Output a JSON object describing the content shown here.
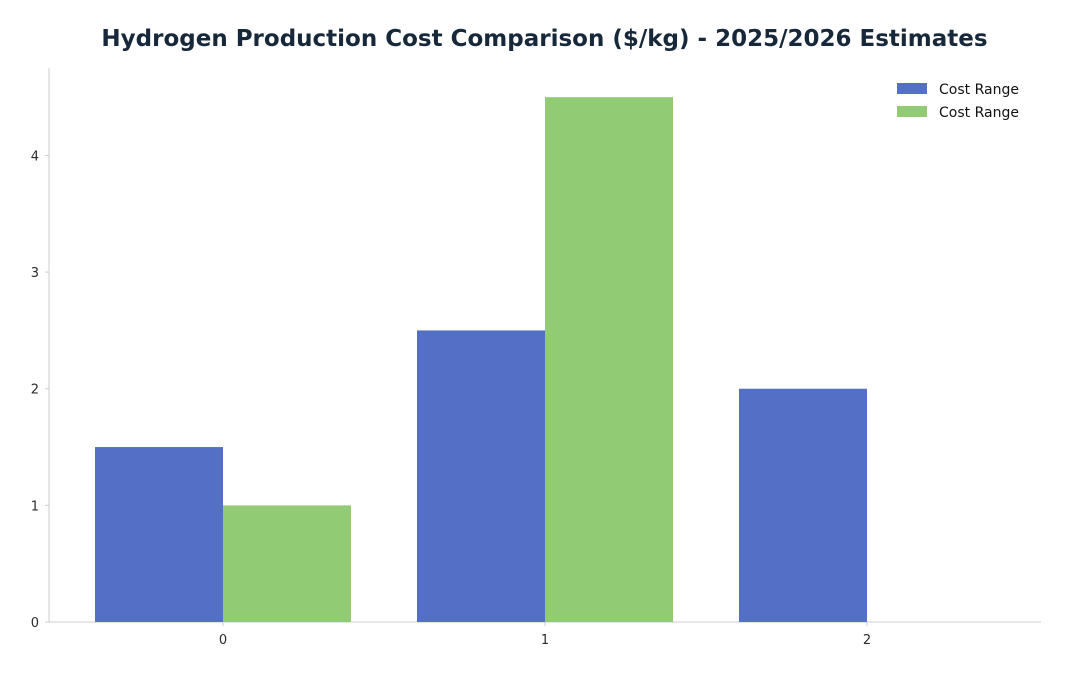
{
  "title": "Hydrogen Production Cost Comparison ($/kg) - 2025/2026 Estimates",
  "colors": {
    "series_0": "#5470c6",
    "series_1": "#91cc75",
    "axis": "#cccccc",
    "text": "#17283a"
  },
  "chart_data": {
    "type": "bar",
    "title": "Hydrogen Production Cost Comparison ($/kg) - 2025/2026 Estimates",
    "categories": [
      "0",
      "1",
      "2"
    ],
    "series": [
      {
        "name": "Cost Range",
        "values": [
          1.5,
          2.5,
          2.0
        ]
      },
      {
        "name": "Cost Range",
        "values": [
          1.0,
          4.5,
          null
        ]
      }
    ],
    "xlabel": "",
    "ylabel": "",
    "yticks": [
      "0",
      "1",
      "2",
      "3",
      "4"
    ],
    "ylim": [
      0,
      4.75
    ],
    "grid": false,
    "legend_position": "top-right"
  }
}
